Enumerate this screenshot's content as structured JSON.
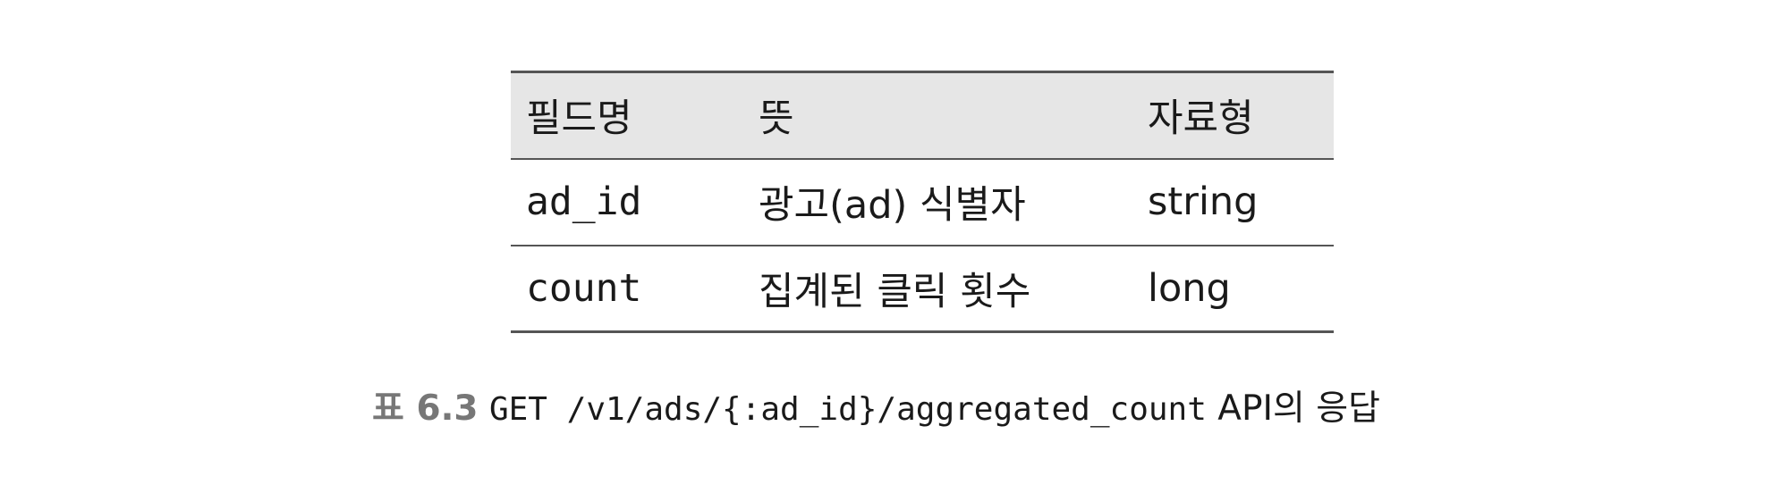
{
  "table": {
    "headers": [
      "필드명",
      "뜻",
      "자료형"
    ],
    "rows": [
      [
        "ad_id",
        "광고(ad) 식별자",
        "string"
      ],
      [
        "count",
        "집계된 클릭 횟수",
        "long"
      ]
    ]
  },
  "caption": {
    "label": "표 6.3",
    "code": "GET /v1/ads/{:ad_id}/aggregated_count",
    "text": "API의 응답"
  }
}
